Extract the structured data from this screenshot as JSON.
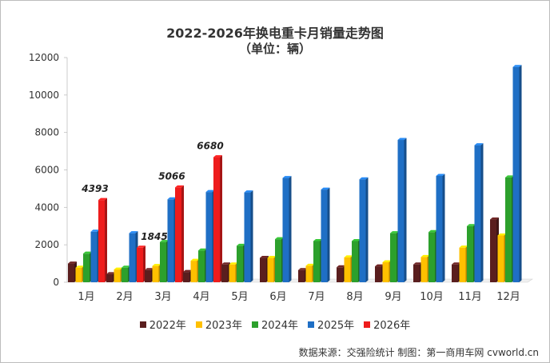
{
  "chart_data": {
    "type": "bar",
    "title": "2022-2026年换电重卡月销量走势图",
    "subtitle": "（单位：辆）",
    "categories": [
      "1月",
      "2月",
      "3月",
      "4月",
      "5月",
      "6月",
      "7月",
      "8月",
      "9月",
      "10月",
      "11月",
      "12月"
    ],
    "series": [
      {
        "name": "2022年",
        "color": "#5a1e1e",
        "values": [
          1000,
          430,
          650,
          550,
          950,
          1300,
          650,
          800,
          850,
          950,
          950,
          3350
        ]
      },
      {
        "name": "2023年",
        "color": "#ffc000",
        "values": [
          780,
          680,
          870,
          1150,
          950,
          1300,
          880,
          1330,
          1070,
          1350,
          1850,
          2500
        ]
      },
      {
        "name": "2024年",
        "color": "#2ca02c",
        "values": [
          1530,
          780,
          2150,
          1700,
          1950,
          2300,
          2200,
          2200,
          2620,
          2680,
          3000,
          5600
        ]
      },
      {
        "name": "2025年",
        "color": "#1f6fc5",
        "values": [
          2700,
          2620,
          4430,
          4820,
          4800,
          5570,
          4950,
          5500,
          7600,
          5680,
          7320,
          11500
        ]
      },
      {
        "name": "2026年",
        "color": "#ee1c1c",
        "values": [
          4393,
          1845,
          5066,
          6680,
          null,
          null,
          null,
          null,
          null,
          null,
          null,
          null
        ]
      }
    ],
    "data_labels": [
      {
        "category_index": 0,
        "series_index": 4,
        "text": "4393"
      },
      {
        "category_index": 1,
        "series_index": 4,
        "text": "1845"
      },
      {
        "category_index": 2,
        "series_index": 4,
        "text": "5066"
      },
      {
        "category_index": 3,
        "series_index": 4,
        "text": "6680"
      }
    ],
    "ylim": [
      0,
      12000
    ],
    "yticks": [
      0,
      2000,
      4000,
      6000,
      8000,
      10000,
      12000
    ],
    "grid": false,
    "legend_position": "bottom"
  },
  "footer": {
    "source": "数据来源：交强险统计 制图：第一商用车网 cvworld.cn"
  }
}
